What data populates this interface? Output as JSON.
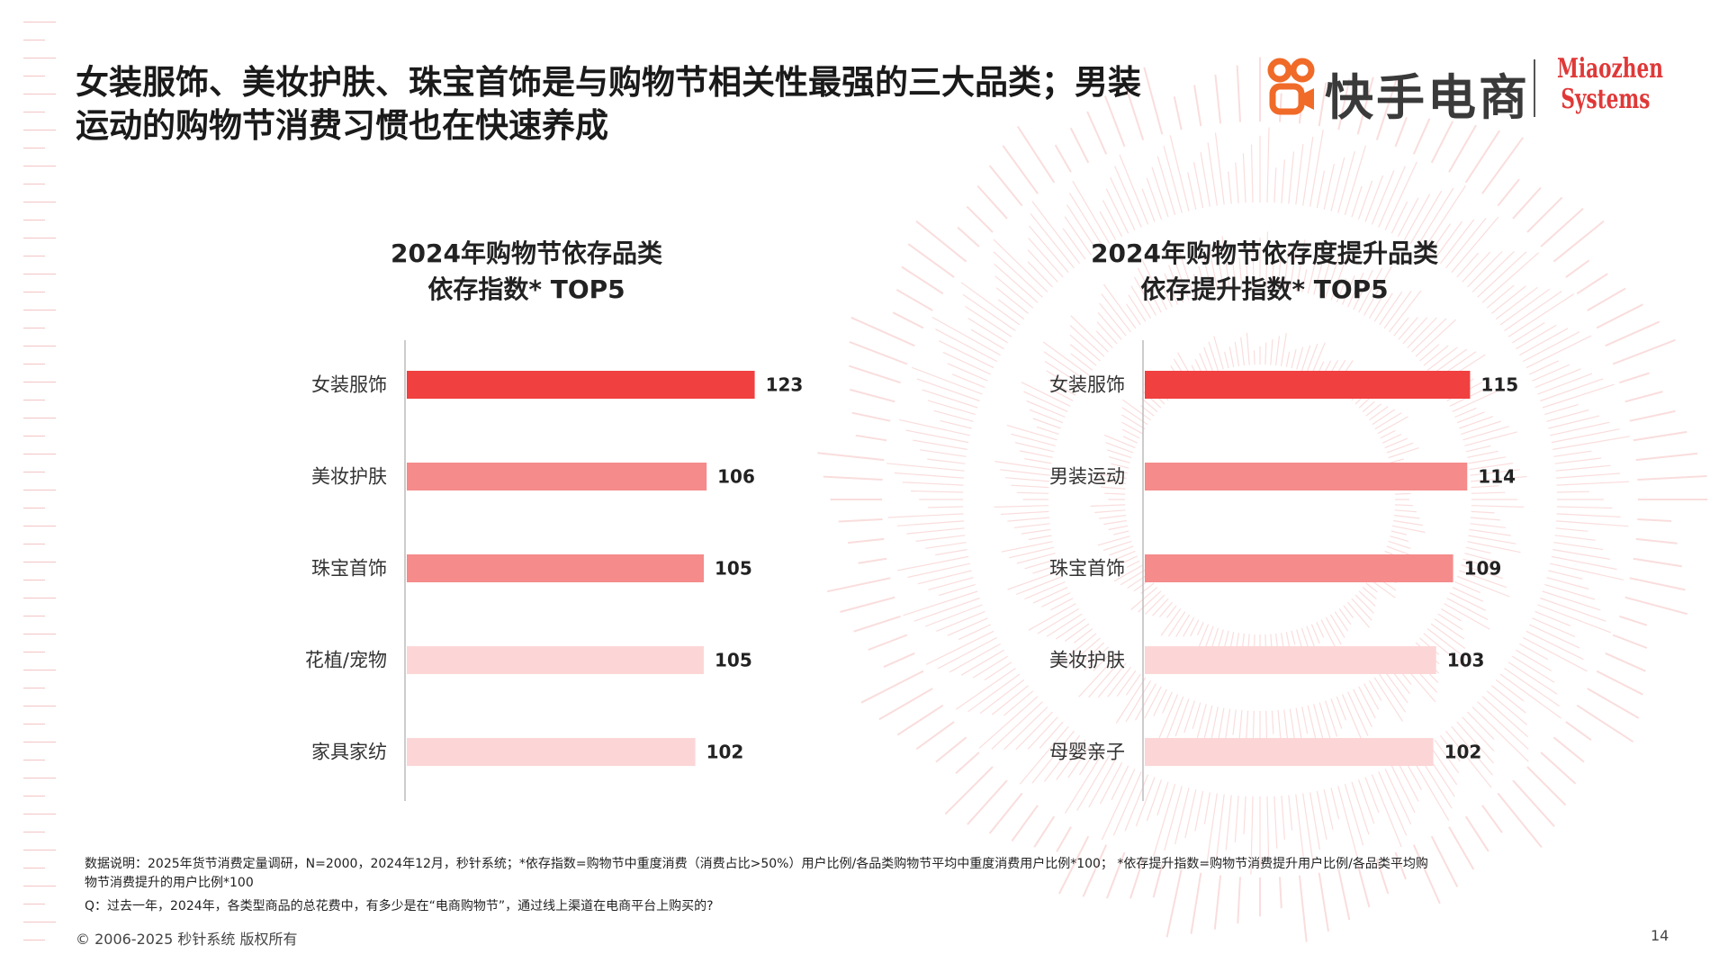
{
  "headline": {
    "line1": "女装服饰、美妆护肤、珠宝首饰是与购物节相关性最强的三大品类；男装",
    "line2": "运动的购物节消费习惯也在快速养成"
  },
  "brand": {
    "kuaishou_name": "快手电商",
    "miaozhen_line1": "Miaozhen",
    "miaozhen_line2": "Systems",
    "accent_color": "#f06a28"
  },
  "colors": {
    "top_bar": "#f04040",
    "mid_bar": "#f58b8b",
    "light_bar": "#fcd6d6",
    "axis": "#bbbbbb",
    "deco": "#f6c2c2"
  },
  "chart_data": [
    {
      "type": "bar",
      "orientation": "horizontal",
      "title_line1": "2024年购物节依存品类",
      "title_line2": "依存指数* TOP5",
      "categories": [
        "女装服饰",
        "美妆护肤",
        "珠宝首饰",
        "花植/宠物",
        "家具家纺"
      ],
      "values": [
        123,
        106,
        105,
        105,
        102
      ],
      "bar_colors": [
        "#f04040",
        "#f58b8b",
        "#f58b8b",
        "#fcd6d6",
        "#fcd6d6"
      ],
      "xlim": [
        0,
        140
      ]
    },
    {
      "type": "bar",
      "orientation": "horizontal",
      "title_line1": "2024年购物节依存度提升品类",
      "title_line2": "依存提升指数* TOP5",
      "categories": [
        "女装服饰",
        "男装运动",
        "珠宝首饰",
        "美妆护肤",
        "母婴亲子"
      ],
      "values": [
        115,
        114,
        109,
        103,
        102
      ],
      "bar_colors": [
        "#f04040",
        "#f58b8b",
        "#f58b8b",
        "#fcd6d6",
        "#fcd6d6"
      ],
      "xlim": [
        0,
        140
      ]
    }
  ],
  "footnote": {
    "line1": "数据说明：2025年货节消费定量调研，N=2000，2024年12月，秒针系统；*依存指数=购物节中重度消费（消费占比>50%）用户比例/各品类购物节平均中重度消费用户比例*100；  *依存提升指数=购物节消费提升用户比例/各品类平均购",
    "line2": "物节消费提升的用户比例*100",
    "line3": "Q：过去一年，2024年，各类型商品的总花费中，有多少是在“电商购物节”，通过线上渠道在电商平台上购买的?"
  },
  "copyright": "© 2006-2025 秒针系统 版权所有",
  "page_number": "14"
}
